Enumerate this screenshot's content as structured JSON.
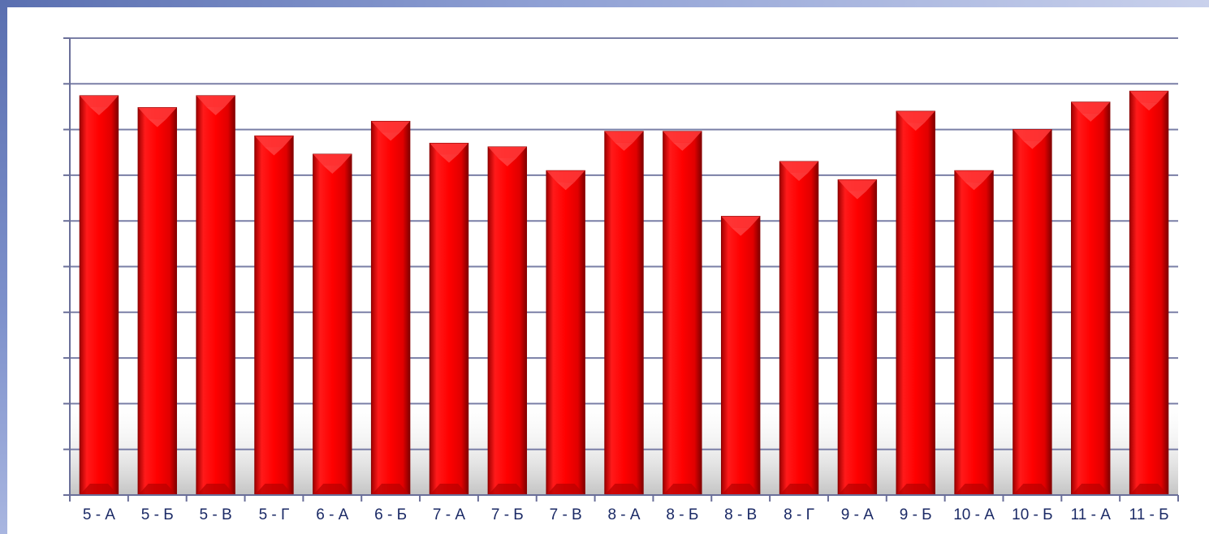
{
  "chart_data": {
    "type": "bar",
    "title": "",
    "xlabel": "",
    "ylabel": "",
    "categories": [
      "5 - А",
      "5 - Б",
      "5 - В",
      "5 - Г",
      "6 - А",
      "6 - Б",
      "7 - А",
      "7 - Б",
      "7 - В",
      "8 - А",
      "8 - Б",
      "8 - В",
      "8 - Г",
      "9 - А",
      "9 - Б",
      "10 - А",
      "10 - Б",
      "11 - А",
      "11 - Б"
    ],
    "series": [
      {
        "values": [
          4.37,
          4.24,
          4.37,
          3.93,
          3.73,
          4.09,
          3.85,
          3.81,
          3.55,
          3.98,
          3.98,
          3.05,
          3.65,
          3.45,
          4.2,
          3.55,
          4.0,
          4.3,
          4.42
        ]
      }
    ],
    "ylim": [
      0,
      5
    ],
    "grid": true,
    "legend": "none",
    "colors": {
      "bar": "#ee0000",
      "bar_top": "#ff3a3a",
      "bar_shadow": "#8a0000",
      "grid": "#7a7fa6",
      "axis": "#6a6f99",
      "tick_label": "#1b2a66"
    }
  }
}
